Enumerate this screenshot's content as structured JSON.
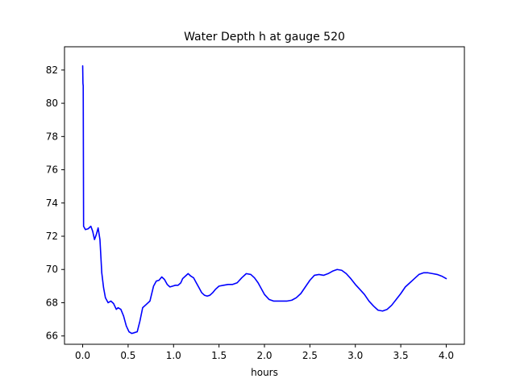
{
  "chart_data": {
    "type": "line",
    "title": "Water Depth h at gauge 520",
    "xlabel": "hours",
    "ylabel": "",
    "xlim": [
      -0.2,
      4.2
    ],
    "ylim": [
      65.5,
      83.4
    ],
    "xticks": [
      0.0,
      0.5,
      1.0,
      1.5,
      2.0,
      2.5,
      3.0,
      3.5,
      4.0
    ],
    "xtick_labels": [
      "0.0",
      "0.5",
      "1.0",
      "1.5",
      "2.0",
      "2.5",
      "3.0",
      "3.5",
      "4.0"
    ],
    "yticks": [
      66,
      68,
      70,
      72,
      74,
      76,
      78,
      80,
      82
    ],
    "ytick_labels": [
      "66",
      "68",
      "70",
      "72",
      "74",
      "76",
      "78",
      "80",
      "82"
    ],
    "grid": false,
    "series": [
      {
        "color": "#0000ff",
        "x": [
          0.0,
          0.003,
          0.006,
          0.01,
          0.03,
          0.06,
          0.09,
          0.11,
          0.13,
          0.15,
          0.17,
          0.19,
          0.21,
          0.23,
          0.25,
          0.28,
          0.31,
          0.34,
          0.37,
          0.39,
          0.42,
          0.45,
          0.48,
          0.51,
          0.54,
          0.57,
          0.6,
          0.63,
          0.66,
          0.7,
          0.74,
          0.78,
          0.81,
          0.84,
          0.87,
          0.9,
          0.93,
          0.96,
          0.99,
          1.02,
          1.05,
          1.08,
          1.1,
          1.13,
          1.16,
          1.19,
          1.22,
          1.25,
          1.28,
          1.31,
          1.34,
          1.37,
          1.4,
          1.43,
          1.46,
          1.5,
          1.55,
          1.6,
          1.65,
          1.7,
          1.75,
          1.8,
          1.85,
          1.89,
          1.93,
          1.97,
          2.0,
          2.05,
          2.1,
          2.15,
          2.2,
          2.25,
          2.3,
          2.35,
          2.4,
          2.45,
          2.5,
          2.55,
          2.6,
          2.65,
          2.7,
          2.75,
          2.8,
          2.85,
          2.9,
          2.95,
          3.0,
          3.05,
          3.1,
          3.15,
          3.2,
          3.25,
          3.3,
          3.35,
          3.4,
          3.45,
          3.5,
          3.55,
          3.6,
          3.65,
          3.7,
          3.75,
          3.8,
          3.85,
          3.9,
          3.95,
          4.0
        ],
        "values": [
          82.25,
          81.2,
          81.05,
          72.6,
          72.4,
          72.45,
          72.6,
          72.3,
          71.8,
          72.1,
          72.5,
          71.8,
          69.8,
          68.9,
          68.3,
          68.0,
          68.1,
          67.95,
          67.6,
          67.7,
          67.6,
          67.2,
          66.6,
          66.25,
          66.15,
          66.2,
          66.25,
          66.9,
          67.7,
          67.9,
          68.1,
          69.0,
          69.3,
          69.35,
          69.55,
          69.4,
          69.1,
          68.95,
          69.0,
          69.05,
          69.05,
          69.2,
          69.45,
          69.6,
          69.75,
          69.6,
          69.5,
          69.2,
          68.9,
          68.6,
          68.45,
          68.4,
          68.45,
          68.6,
          68.8,
          69.0,
          69.05,
          69.1,
          69.1,
          69.2,
          69.5,
          69.75,
          69.7,
          69.5,
          69.2,
          68.8,
          68.5,
          68.2,
          68.1,
          68.1,
          68.1,
          68.1,
          68.15,
          68.3,
          68.55,
          68.95,
          69.35,
          69.65,
          69.7,
          69.65,
          69.75,
          69.9,
          70.0,
          69.95,
          69.75,
          69.45,
          69.1,
          68.8,
          68.5,
          68.1,
          67.8,
          67.55,
          67.5,
          67.6,
          67.85,
          68.2,
          68.55,
          68.95,
          69.2,
          69.45,
          69.7,
          69.8,
          69.8,
          69.75,
          69.7,
          69.6,
          69.45
        ]
      }
    ]
  }
}
